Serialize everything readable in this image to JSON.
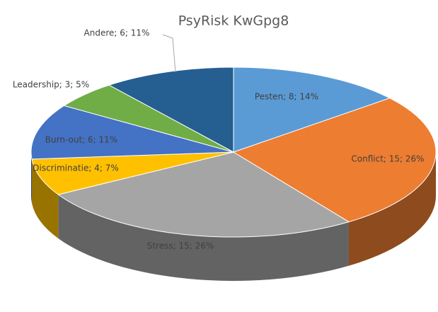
{
  "chart_data": {
    "type": "pie3d",
    "title": "PsyRisk KwGpg8",
    "values": [
      8,
      15,
      15,
      4,
      6,
      3,
      6
    ],
    "value_labels": [
      "Pesten; 8; 14%",
      "Conflict; 15; 26%",
      "Stress; 15; 26%",
      "Discriminatie; 4; 7%",
      "Burn-out; 6; 11%",
      "Leadership; 3; 5%",
      "Andere; 6; 11%"
    ],
    "colors": [
      "#5b9bd5",
      "#ed7d31",
      "#a5a5a5",
      "#ffc000",
      "#4472c4",
      "#70ad47",
      "#255e91"
    ]
  }
}
